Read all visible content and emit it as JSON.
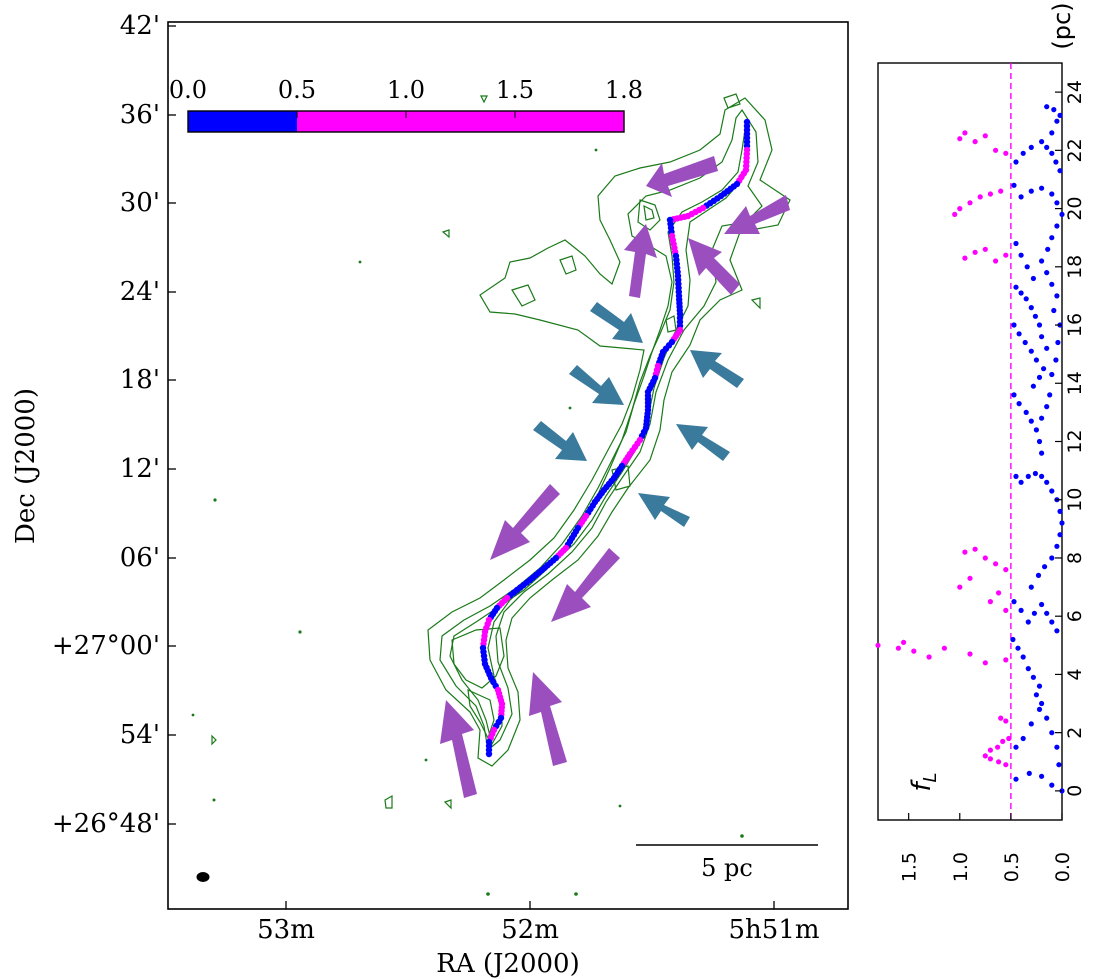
{
  "chart_data": [
    {
      "type": "map",
      "xlabel": "RA (J2000)",
      "ylabel": "Dec (J2000)",
      "x_ticks": [
        "53m",
        "52m",
        "5h51m"
      ],
      "y_ticks": [
        "42'",
        "36'",
        "30'",
        "24'",
        "18'",
        "12'",
        "06'",
        "+27°00'",
        "54'",
        "48'"
      ],
      "y_tick_last": "+26°48'",
      "colorbar": {
        "ticks": [
          "0.0",
          "0.5",
          "1.0",
          "1.5",
          "1.8"
        ],
        "range": [
          0,
          1.8
        ],
        "split": 0.5,
        "low_color": "#0000ff",
        "high_color": "#ff00ff"
      },
      "scalebar_label": "5 pc",
      "contour_color": "#1a7a1a",
      "arrow_colors": {
        "purple": "#9b4fbf",
        "teal": "#3a7a9c"
      },
      "spine_points": [
        [
          747,
          122
        ],
        [
          747,
          150
        ],
        [
          746,
          170
        ],
        [
          737,
          184
        ],
        [
          721,
          196
        ],
        [
          703,
          208
        ],
        [
          688,
          216
        ],
        [
          670,
          220
        ],
        [
          672,
          236
        ],
        [
          676,
          256
        ],
        [
          678,
          276
        ],
        [
          679,
          296
        ],
        [
          680,
          314
        ],
        [
          680,
          330
        ],
        [
          672,
          342
        ],
        [
          663,
          352
        ],
        [
          658,
          366
        ],
        [
          655,
          378
        ],
        [
          648,
          392
        ],
        [
          648,
          410
        ],
        [
          646,
          428
        ],
        [
          640,
          440
        ],
        [
          630,
          454
        ],
        [
          622,
          466
        ],
        [
          614,
          478
        ],
        [
          604,
          490
        ],
        [
          595,
          502
        ],
        [
          586,
          516
        ],
        [
          578,
          528
        ],
        [
          572,
          538
        ],
        [
          566,
          548
        ],
        [
          556,
          558
        ],
        [
          542,
          570
        ],
        [
          530,
          580
        ],
        [
          517,
          590
        ],
        [
          507,
          598
        ],
        [
          497,
          608
        ],
        [
          489,
          620
        ],
        [
          485,
          632
        ],
        [
          483,
          648
        ],
        [
          485,
          664
        ],
        [
          491,
          678
        ],
        [
          498,
          690
        ],
        [
          502,
          704
        ],
        [
          501,
          718
        ],
        [
          494,
          730
        ],
        [
          489,
          742
        ],
        [
          489,
          758
        ]
      ],
      "spine_colors": [
        "b",
        "m",
        "m",
        "b",
        "b",
        "m",
        "m",
        "b",
        "m",
        "b",
        "b",
        "b",
        "b",
        "m",
        "b",
        "b",
        "m",
        "b",
        "b",
        "b",
        "b",
        "m",
        "m",
        "b",
        "b",
        "b",
        "b",
        "m",
        "b",
        "b",
        "m",
        "b",
        "b",
        "b",
        "b",
        "m",
        "b",
        "m",
        "m",
        "b",
        "b",
        "b",
        "m",
        "m",
        "b",
        "m",
        "b",
        "b"
      ]
    },
    {
      "type": "scatter",
      "xlabel": "f_L",
      "ylabel": "(pc)",
      "xlim": [
        1.8,
        0.0
      ],
      "ylim": [
        -1,
        25
      ],
      "x_ticks": [
        "1.5",
        "1.0",
        "0.5",
        "0.0"
      ],
      "y_ticks": [
        "0",
        "2",
        "4",
        "6",
        "8",
        "10",
        "12",
        "14",
        "16",
        "18",
        "20",
        "22",
        "24"
      ],
      "threshold": 0.5,
      "series": [
        {
          "color": "#0000ff",
          "points": [
            [
              0.0,
              0.0
            ],
            [
              0.1,
              0.2
            ],
            [
              0.2,
              0.5
            ],
            [
              0.32,
              0.6
            ],
            [
              0.45,
              0.4
            ],
            [
              0.03,
              0.9
            ],
            [
              0.05,
              1.5
            ],
            [
              0.1,
              2.0
            ],
            [
              0.15,
              2.5
            ],
            [
              0.22,
              2.8
            ],
            [
              0.3,
              2.3
            ],
            [
              0.38,
              1.8
            ],
            [
              0.45,
              1.5
            ],
            [
              0.2,
              3.0
            ],
            [
              0.25,
              3.3
            ],
            [
              0.22,
              3.6
            ],
            [
              0.28,
              3.9
            ],
            [
              0.33,
              4.2
            ],
            [
              0.38,
              4.6
            ],
            [
              0.43,
              4.9
            ],
            [
              0.48,
              5.2
            ],
            [
              0.05,
              5.5
            ],
            [
              0.1,
              5.8
            ],
            [
              0.15,
              6.1
            ],
            [
              0.2,
              6.4
            ],
            [
              0.27,
              6.1
            ],
            [
              0.33,
              5.8
            ],
            [
              0.4,
              6.2
            ],
            [
              0.47,
              6.5
            ],
            [
              0.3,
              7.0
            ],
            [
              0.23,
              7.4
            ],
            [
              0.17,
              7.7
            ],
            [
              0.1,
              8.0
            ],
            [
              0.05,
              8.4
            ],
            [
              0.02,
              8.8
            ],
            [
              0.0,
              9.2
            ],
            [
              0.02,
              9.6
            ],
            [
              0.05,
              10.0
            ],
            [
              0.1,
              10.3
            ],
            [
              0.15,
              10.6
            ],
            [
              0.2,
              10.8
            ],
            [
              0.26,
              10.9
            ],
            [
              0.33,
              10.8
            ],
            [
              0.4,
              10.6
            ],
            [
              0.45,
              10.8
            ],
            [
              0.2,
              11.6
            ],
            [
              0.22,
              12.0
            ],
            [
              0.25,
              12.4
            ],
            [
              0.3,
              12.7
            ],
            [
              0.35,
              13.0
            ],
            [
              0.42,
              13.3
            ],
            [
              0.47,
              13.6
            ],
            [
              0.2,
              12.8
            ],
            [
              0.15,
              13.2
            ],
            [
              0.12,
              13.6
            ],
            [
              0.28,
              13.9
            ],
            [
              0.22,
              14.2
            ],
            [
              0.18,
              14.5
            ],
            [
              0.25,
              14.8
            ],
            [
              0.3,
              15.1
            ],
            [
              0.36,
              15.4
            ],
            [
              0.42,
              15.7
            ],
            [
              0.47,
              16.0
            ],
            [
              0.1,
              14.3
            ],
            [
              0.06,
              14.8
            ],
            [
              0.04,
              15.4
            ],
            [
              0.02,
              16.0
            ],
            [
              0.15,
              15.2
            ],
            [
              0.2,
              15.6
            ],
            [
              0.22,
              16.0
            ],
            [
              0.26,
              16.3
            ],
            [
              0.3,
              16.6
            ],
            [
              0.35,
              16.9
            ],
            [
              0.4,
              17.1
            ],
            [
              0.45,
              17.3
            ],
            [
              0.08,
              16.5
            ],
            [
              0.05,
              17.0
            ],
            [
              0.1,
              17.4
            ],
            [
              0.15,
              17.8
            ],
            [
              0.28,
              17.6
            ],
            [
              0.34,
              18.0
            ],
            [
              0.4,
              18.4
            ],
            [
              0.45,
              18.8
            ],
            [
              0.2,
              18.2
            ],
            [
              0.14,
              18.6
            ],
            [
              0.1,
              19.0
            ],
            [
              0.05,
              19.4
            ],
            [
              0.0,
              19.8
            ],
            [
              0.05,
              20.2
            ],
            [
              0.1,
              20.5
            ],
            [
              0.2,
              20.7
            ],
            [
              0.3,
              20.6
            ],
            [
              0.4,
              20.4
            ],
            [
              0.47,
              20.8
            ],
            [
              0.02,
              21.3
            ],
            [
              0.06,
              21.6
            ],
            [
              0.1,
              21.9
            ],
            [
              0.15,
              22.1
            ],
            [
              0.2,
              22.3
            ],
            [
              0.3,
              22.1
            ],
            [
              0.38,
              21.9
            ],
            [
              0.45,
              21.6
            ],
            [
              0.1,
              22.6
            ],
            [
              0.05,
              23.0
            ],
            [
              0.02,
              23.2
            ],
            [
              0.08,
              23.4
            ],
            [
              0.15,
              23.5
            ]
          ]
        },
        {
          "color": "#ff00ff",
          "points": [
            [
              0.55,
              0.9
            ],
            [
              0.62,
              1.0
            ],
            [
              0.7,
              1.1
            ],
            [
              0.75,
              1.2
            ],
            [
              0.7,
              1.4
            ],
            [
              0.63,
              1.5
            ],
            [
              0.58,
              1.7
            ],
            [
              0.52,
              1.8
            ],
            [
              0.55,
              2.4
            ],
            [
              0.6,
              2.5
            ],
            [
              1.8,
              5.0
            ],
            [
              1.6,
              4.9
            ],
            [
              1.55,
              5.1
            ],
            [
              1.45,
              4.8
            ],
            [
              1.3,
              4.6
            ],
            [
              1.15,
              4.9
            ],
            [
              0.9,
              4.7
            ],
            [
              0.75,
              4.4
            ],
            [
              0.55,
              4.5
            ],
            [
              1.0,
              7.0
            ],
            [
              0.9,
              7.3
            ],
            [
              0.95,
              8.2
            ],
            [
              0.85,
              8.3
            ],
            [
              0.75,
              8.0
            ],
            [
              0.65,
              7.8
            ],
            [
              0.55,
              7.6
            ],
            [
              0.7,
              6.5
            ],
            [
              0.62,
              6.8
            ],
            [
              0.55,
              6.2
            ],
            [
              1.05,
              19.8
            ],
            [
              1.0,
              20.0
            ],
            [
              0.9,
              20.2
            ],
            [
              0.8,
              20.4
            ],
            [
              0.7,
              20.5
            ],
            [
              0.6,
              20.6
            ],
            [
              0.95,
              18.3
            ],
            [
              0.85,
              18.5
            ],
            [
              0.75,
              18.6
            ],
            [
              0.65,
              18.2
            ],
            [
              0.55,
              18.4
            ],
            [
              1.0,
              22.4
            ],
            [
              0.95,
              22.6
            ],
            [
              0.85,
              22.3
            ],
            [
              0.75,
              22.5
            ],
            [
              0.65,
              22.0
            ],
            [
              0.55,
              21.9
            ]
          ]
        }
      ]
    }
  ]
}
